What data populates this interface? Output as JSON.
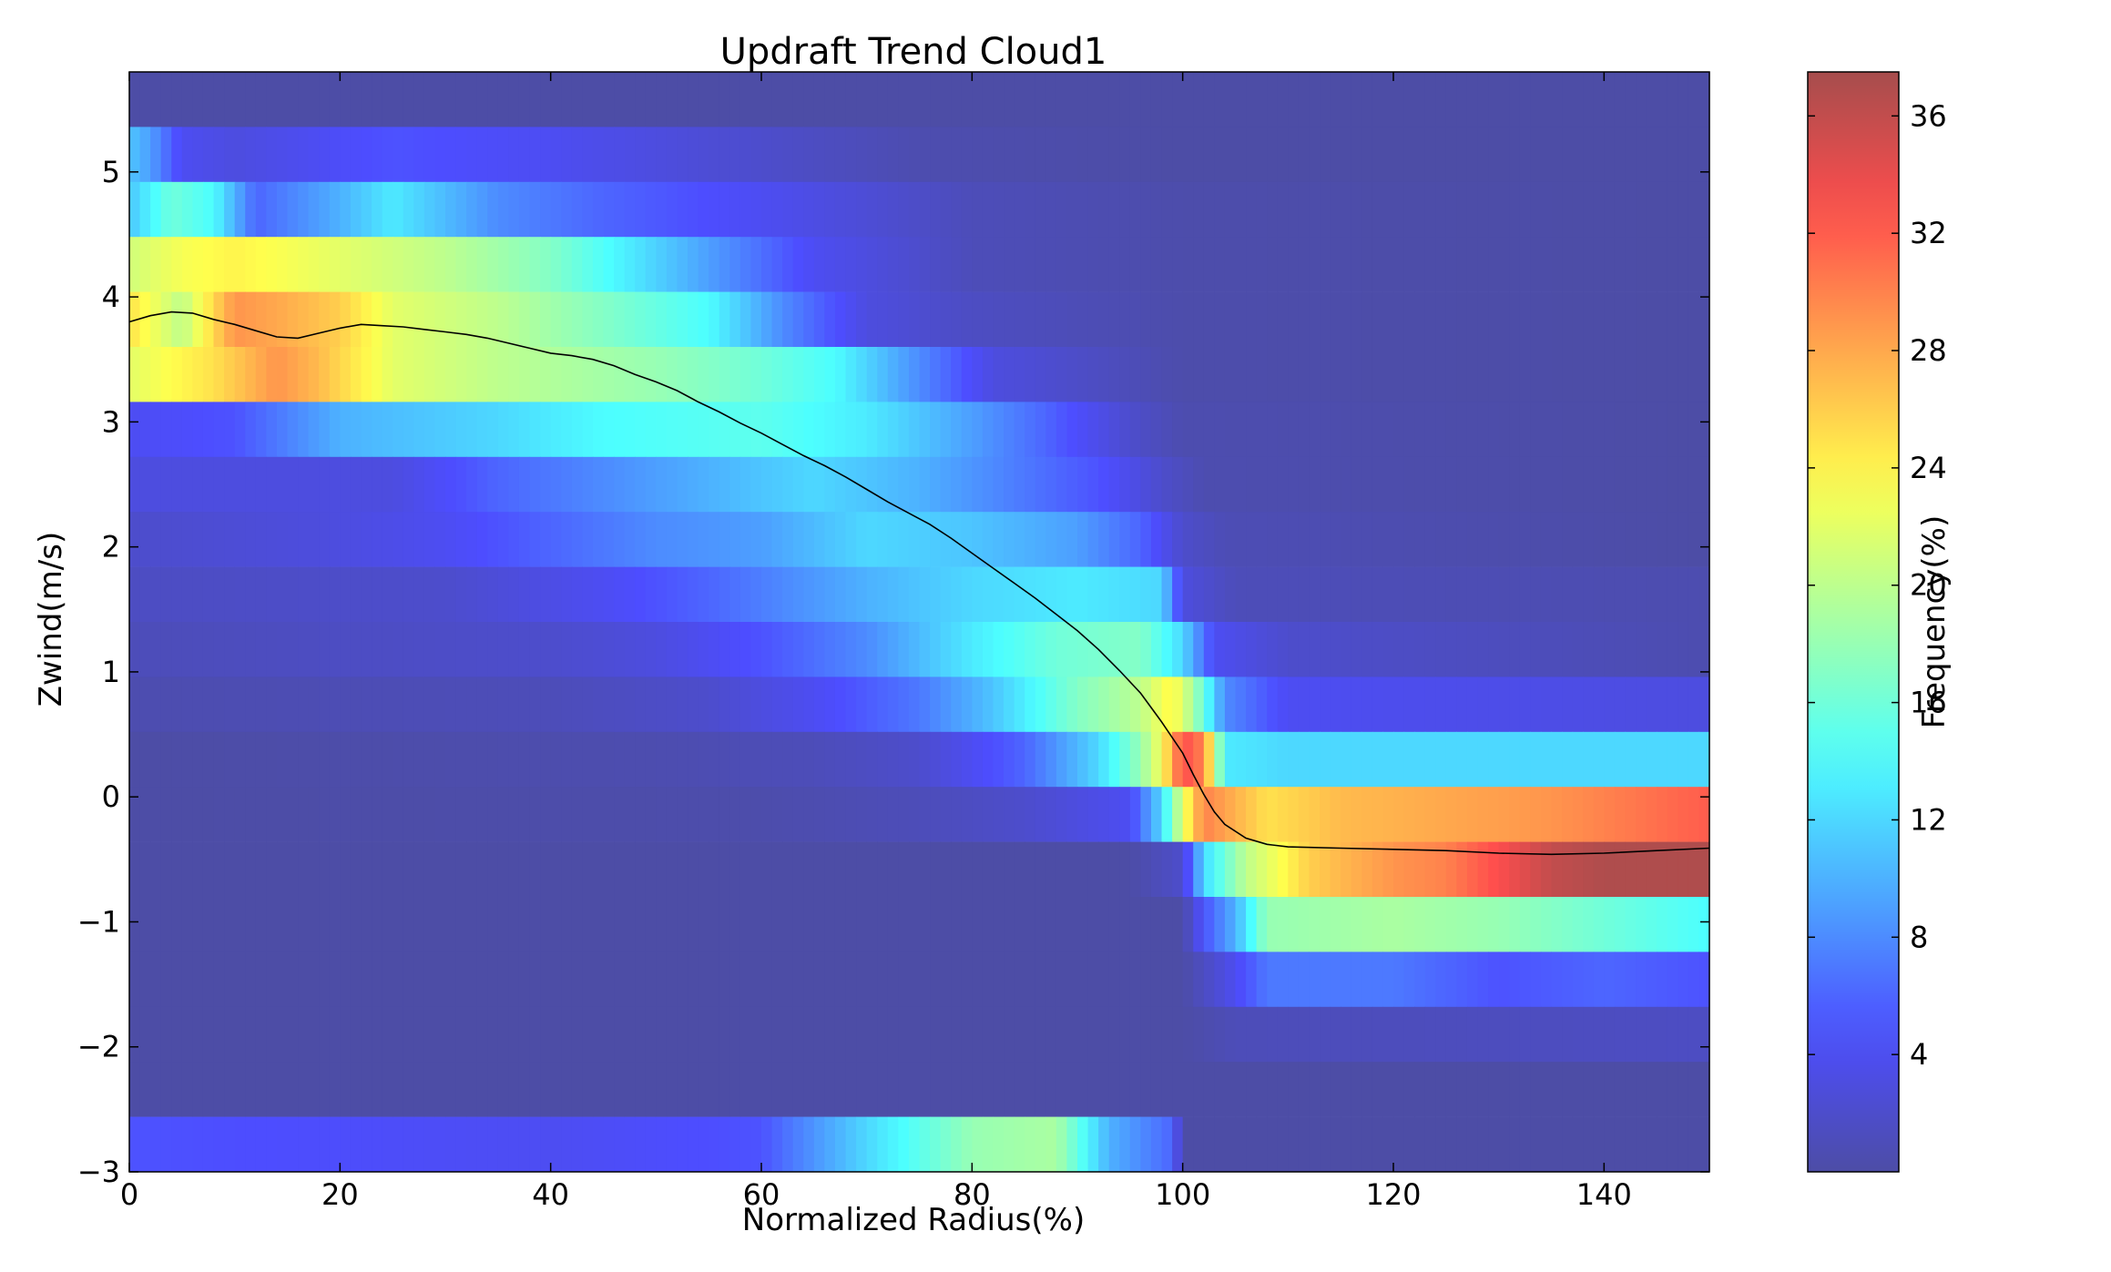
{
  "chart_data": {
    "type": "heatmap",
    "title": "Updraft Trend Cloud1",
    "xlabel": "Normalized Radius(%)",
    "ylabel": "Zwind(m/s)",
    "xlim": [
      0,
      150
    ],
    "ylim": [
      -3,
      5.8
    ],
    "x_ticks": [
      0,
      20,
      40,
      60,
      80,
      100,
      120,
      140
    ],
    "y_ticks": [
      -3,
      -2,
      -1,
      0,
      1,
      2,
      3,
      4,
      5
    ],
    "x_tick_labels": [
      "0",
      "20",
      "40",
      "60",
      "80",
      "100",
      "120",
      "140"
    ],
    "y_tick_labels": [
      "−3",
      "−2",
      "−1",
      "0",
      "1",
      "2",
      "3",
      "4",
      "5"
    ],
    "grid": false,
    "colorbar": {
      "label": "Frequency(%)",
      "min": 0,
      "max": 37.5,
      "ticks": [
        4,
        8,
        12,
        16,
        20,
        24,
        28,
        32,
        36
      ],
      "tick_labels": [
        "4",
        "8",
        "12",
        "16",
        "20",
        "24",
        "28",
        "32",
        "36"
      ],
      "colormap": "jet"
    },
    "bin_size_x": 1,
    "y_bins": [
      {
        "y0": 5.36,
        "y1": 5.8,
        "profile": [
          [
            0,
            0
          ],
          [
            150,
            0
          ]
        ]
      },
      {
        "y0": 4.92,
        "y1": 5.36,
        "profile": [
          [
            0,
            11
          ],
          [
            2,
            9
          ],
          [
            5,
            4
          ],
          [
            10,
            3
          ],
          [
            25,
            5
          ],
          [
            40,
            4
          ],
          [
            60,
            2
          ],
          [
            75,
            0.5
          ],
          [
            100,
            0
          ],
          [
            150,
            0
          ]
        ]
      },
      {
        "y0": 4.48,
        "y1": 4.92,
        "profile": [
          [
            0,
            11
          ],
          [
            4,
            16
          ],
          [
            8,
            14
          ],
          [
            12,
            6
          ],
          [
            20,
            10
          ],
          [
            25,
            13
          ],
          [
            35,
            8
          ],
          [
            45,
            6
          ],
          [
            60,
            4
          ],
          [
            80,
            1
          ],
          [
            100,
            0.3
          ],
          [
            150,
            0
          ]
        ]
      },
      {
        "y0": 4.04,
        "y1": 4.48,
        "profile": [
          [
            0,
            21
          ],
          [
            5,
            23
          ],
          [
            10,
            24
          ],
          [
            20,
            22
          ],
          [
            30,
            20
          ],
          [
            40,
            17
          ],
          [
            55,
            9
          ],
          [
            65,
            4
          ],
          [
            80,
            1
          ],
          [
            100,
            0.3
          ],
          [
            150,
            0
          ]
        ]
      },
      {
        "y0": 3.6,
        "y1": 4.04,
        "profile": [
          [
            0,
            25
          ],
          [
            5,
            20
          ],
          [
            10,
            29
          ],
          [
            14,
            28
          ],
          [
            20,
            26
          ],
          [
            25,
            22
          ],
          [
            35,
            20
          ],
          [
            45,
            17
          ],
          [
            55,
            14
          ],
          [
            62,
            8
          ],
          [
            70,
            3
          ],
          [
            80,
            1.5
          ],
          [
            100,
            0.3
          ],
          [
            150,
            0
          ]
        ]
      },
      {
        "y0": 3.16,
        "y1": 3.6,
        "profile": [
          [
            0,
            22
          ],
          [
            8,
            25
          ],
          [
            14,
            29
          ],
          [
            18,
            27
          ],
          [
            25,
            22
          ],
          [
            35,
            20
          ],
          [
            50,
            18
          ],
          [
            60,
            16
          ],
          [
            67,
            14
          ],
          [
            75,
            8
          ],
          [
            82,
            3
          ],
          [
            95,
            1
          ],
          [
            100,
            0.3
          ],
          [
            150,
            0
          ]
        ]
      },
      {
        "y0": 2.72,
        "y1": 3.16,
        "profile": [
          [
            0,
            4
          ],
          [
            10,
            5
          ],
          [
            20,
            10
          ],
          [
            35,
            12
          ],
          [
            45,
            14
          ],
          [
            60,
            15
          ],
          [
            70,
            13
          ],
          [
            80,
            9
          ],
          [
            87,
            6
          ],
          [
            95,
            2
          ],
          [
            100,
            0.5
          ],
          [
            150,
            0
          ]
        ]
      },
      {
        "y0": 2.28,
        "y1": 2.72,
        "profile": [
          [
            0,
            3
          ],
          [
            25,
            3
          ],
          [
            35,
            6
          ],
          [
            45,
            8
          ],
          [
            55,
            10
          ],
          [
            65,
            12
          ],
          [
            75,
            10
          ],
          [
            85,
            7
          ],
          [
            92,
            5
          ],
          [
            98,
            2
          ],
          [
            102,
            0.5
          ],
          [
            150,
            0
          ]
        ]
      },
      {
        "y0": 1.84,
        "y1": 2.28,
        "profile": [
          [
            0,
            2
          ],
          [
            20,
            3
          ],
          [
            30,
            4
          ],
          [
            40,
            6
          ],
          [
            50,
            8
          ],
          [
            60,
            9
          ],
          [
            70,
            12
          ],
          [
            80,
            11
          ],
          [
            90,
            9
          ],
          [
            96,
            6
          ],
          [
            100,
            2
          ],
          [
            104,
            0.8
          ],
          [
            150,
            0
          ]
        ]
      },
      {
        "y0": 1.4,
        "y1": 1.84,
        "profile": [
          [
            0,
            1.5
          ],
          [
            30,
            2
          ],
          [
            45,
            4
          ],
          [
            55,
            6
          ],
          [
            70,
            10
          ],
          [
            80,
            12
          ],
          [
            90,
            13
          ],
          [
            98,
            12
          ],
          [
            100,
            3
          ],
          [
            105,
            1
          ],
          [
            150,
            0.5
          ]
        ]
      },
      {
        "y0": 0.96,
        "y1": 1.4,
        "profile": [
          [
            0,
            1
          ],
          [
            40,
            2
          ],
          [
            50,
            3
          ],
          [
            60,
            5
          ],
          [
            70,
            8
          ],
          [
            80,
            13
          ],
          [
            88,
            16
          ],
          [
            96,
            17
          ],
          [
            100,
            12
          ],
          [
            103,
            4
          ],
          [
            110,
            2
          ],
          [
            150,
            0.5
          ]
        ]
      },
      {
        "y0": 0.52,
        "y1": 0.96,
        "profile": [
          [
            0,
            0.5
          ],
          [
            40,
            1
          ],
          [
            55,
            2
          ],
          [
            65,
            4
          ],
          [
            75,
            7
          ],
          [
            82,
            11
          ],
          [
            90,
            17
          ],
          [
            96,
            20
          ],
          [
            99,
            24
          ],
          [
            101,
            19
          ],
          [
            104,
            8
          ],
          [
            110,
            4
          ],
          [
            150,
            3
          ]
        ]
      },
      {
        "y0": 0.08,
        "y1": 0.52,
        "profile": [
          [
            0,
            0
          ],
          [
            50,
            0.5
          ],
          [
            65,
            1
          ],
          [
            75,
            2
          ],
          [
            85,
            6
          ],
          [
            92,
            12
          ],
          [
            96,
            18
          ],
          [
            98,
            23
          ],
          [
            100,
            33
          ],
          [
            102,
            30
          ],
          [
            104,
            13
          ],
          [
            110,
            12
          ],
          [
            150,
            12
          ]
        ]
      },
      {
        "y0": -0.36,
        "y1": 0.08,
        "profile": [
          [
            0,
            0
          ],
          [
            60,
            0.3
          ],
          [
            75,
            1
          ],
          [
            85,
            2
          ],
          [
            95,
            4
          ],
          [
            98,
            12
          ],
          [
            100,
            22
          ],
          [
            102,
            30
          ],
          [
            108,
            25
          ],
          [
            115,
            27
          ],
          [
            125,
            28
          ],
          [
            135,
            29
          ],
          [
            145,
            31
          ],
          [
            150,
            32
          ]
        ]
      },
      {
        "y0": -0.8,
        "y1": -0.36,
        "profile": [
          [
            0,
            0
          ],
          [
            95,
            0
          ],
          [
            100,
            2
          ],
          [
            102,
            12
          ],
          [
            106,
            20
          ],
          [
            112,
            26
          ],
          [
            120,
            29
          ],
          [
            125,
            30
          ],
          [
            130,
            33
          ],
          [
            135,
            36
          ],
          [
            140,
            37
          ],
          [
            145,
            37
          ],
          [
            150,
            37
          ]
        ]
      },
      {
        "y0": -1.24,
        "y1": -0.8,
        "profile": [
          [
            0,
            0
          ],
          [
            100,
            0
          ],
          [
            102,
            5
          ],
          [
            105,
            10
          ],
          [
            108,
            18
          ],
          [
            120,
            19
          ],
          [
            130,
            18
          ],
          [
            140,
            16
          ],
          [
            150,
            14
          ]
        ]
      },
      {
        "y0": -1.68,
        "y1": -1.24,
        "profile": [
          [
            0,
            0
          ],
          [
            100,
            0
          ],
          [
            104,
            3
          ],
          [
            108,
            7
          ],
          [
            120,
            7
          ],
          [
            130,
            5
          ],
          [
            140,
            6
          ],
          [
            150,
            5
          ]
        ]
      },
      {
        "y0": -2.12,
        "y1": -1.68,
        "profile": [
          [
            0,
            0
          ],
          [
            100,
            0
          ],
          [
            105,
            1
          ],
          [
            150,
            1.5
          ]
        ]
      },
      {
        "y0": -2.56,
        "y1": -2.12,
        "profile": [
          [
            0,
            0
          ],
          [
            150,
            0
          ]
        ]
      },
      {
        "y0": -3.0,
        "y1": -2.56,
        "profile": [
          [
            0,
            5
          ],
          [
            20,
            4.5
          ],
          [
            40,
            4
          ],
          [
            60,
            5
          ],
          [
            70,
            12
          ],
          [
            80,
            18
          ],
          [
            88,
            19
          ],
          [
            93,
            10
          ],
          [
            96,
            8
          ],
          [
            99,
            6
          ],
          [
            100,
            0
          ],
          [
            150,
            0
          ]
        ]
      }
    ],
    "series": [
      {
        "type": "line",
        "color": "#000000",
        "x": [
          0,
          2,
          4,
          6,
          8,
          10,
          12,
          14,
          16,
          18,
          20,
          22,
          24,
          26,
          28,
          30,
          32,
          34,
          36,
          38,
          40,
          42,
          44,
          46,
          48,
          50,
          52,
          54,
          56,
          58,
          60,
          62,
          64,
          66,
          68,
          70,
          72,
          74,
          76,
          78,
          80,
          82,
          84,
          86,
          88,
          90,
          92,
          94,
          96,
          98,
          100,
          101,
          102,
          103,
          104,
          106,
          108,
          110,
          115,
          120,
          125,
          130,
          135,
          140,
          145,
          150
        ],
        "y": [
          3.8,
          3.85,
          3.88,
          3.87,
          3.82,
          3.78,
          3.73,
          3.68,
          3.67,
          3.71,
          3.75,
          3.78,
          3.77,
          3.76,
          3.74,
          3.72,
          3.7,
          3.67,
          3.63,
          3.59,
          3.55,
          3.53,
          3.5,
          3.45,
          3.38,
          3.32,
          3.25,
          3.16,
          3.08,
          2.99,
          2.91,
          2.82,
          2.73,
          2.65,
          2.56,
          2.46,
          2.36,
          2.27,
          2.18,
          2.07,
          1.95,
          1.83,
          1.71,
          1.59,
          1.46,
          1.33,
          1.18,
          1.01,
          0.83,
          0.6,
          0.35,
          0.18,
          0.02,
          -0.12,
          -0.22,
          -0.33,
          -0.38,
          -0.4,
          -0.41,
          -0.42,
          -0.43,
          -0.45,
          -0.46,
          -0.45,
          -0.43,
          -0.41
        ]
      }
    ]
  }
}
